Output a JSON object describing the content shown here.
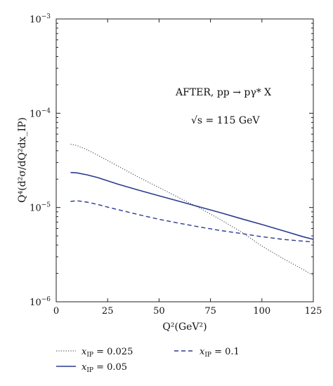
{
  "chart_data": {
    "type": "line",
    "xlabel": "Q²(GeV²)",
    "ylabel": "Q⁴(d²σ/dQ²dx_IP)",
    "xlim": [
      0,
      125
    ],
    "ylim": [
      1e-06,
      0.001
    ],
    "yscale": "log",
    "x_ticks": [
      0,
      25,
      50,
      75,
      100,
      125
    ],
    "y_ticks": [
      {
        "value": 0.001,
        "label": "10",
        "exp": "−3"
      },
      {
        "value": 0.0001,
        "label": "10",
        "exp": "−4"
      },
      {
        "value": 1e-05,
        "label": "10",
        "exp": "−5"
      },
      {
        "value": 1e-06,
        "label": "10",
        "exp": "−6"
      }
    ],
    "grid": false,
    "legend_position": "bottom",
    "annotations": [
      "AFTER, pp → pγ* X",
      "√s = 115 GeV"
    ],
    "series": [
      {
        "name": "x_IP = 0.025",
        "legend": {
          "sym": "x",
          "sub": "IP",
          "rest": " = 0.025"
        },
        "style": "dotted",
        "color": "#555555",
        "x": [
          7,
          10,
          15,
          20,
          25,
          30,
          40,
          50,
          60,
          70,
          80,
          90,
          100,
          110,
          120,
          125
        ],
        "y": [
          4.7e-05,
          4.55e-05,
          4.1e-05,
          3.6e-05,
          3.15e-05,
          2.75e-05,
          2.1e-05,
          1.63e-05,
          1.26e-05,
          9.8e-06,
          7.4e-06,
          5.5e-06,
          3.9e-06,
          2.9e-06,
          2.2e-06,
          1.9e-06
        ]
      },
      {
        "name": "x_IP = 0.05",
        "legend": {
          "sym": "x",
          "sub": "IP",
          "rest": " = 0.05"
        },
        "style": "solid",
        "color": "#2b3a8f",
        "x": [
          7,
          10,
          15,
          20,
          25,
          30,
          40,
          50,
          60,
          70,
          80,
          90,
          100,
          110,
          120,
          125
        ],
        "y": [
          2.35e-05,
          2.33e-05,
          2.22e-05,
          2.08e-05,
          1.92e-05,
          1.77e-05,
          1.53e-05,
          1.33e-05,
          1.16e-05,
          1.01e-05,
          8.8e-06,
          7.6e-06,
          6.6e-06,
          5.7e-06,
          4.9e-06,
          4.6e-06
        ]
      },
      {
        "name": "x_IP = 0.1",
        "legend": {
          "sym": "x",
          "sub": "IP",
          "rest": " = 0.1"
        },
        "style": "dashed",
        "color": "#2b3a8f",
        "x": [
          7,
          10,
          15,
          20,
          25,
          30,
          40,
          50,
          60,
          70,
          80,
          90,
          100,
          110,
          120,
          125
        ],
        "y": [
          1.16e-05,
          1.18e-05,
          1.14e-05,
          1.08e-05,
          1.01e-05,
          9.5e-06,
          8.4e-06,
          7.5e-06,
          6.8e-06,
          6.2e-06,
          5.7e-06,
          5.3e-06,
          4.9e-06,
          4.6e-06,
          4.4e-06,
          4.3e-06
        ]
      }
    ]
  }
}
